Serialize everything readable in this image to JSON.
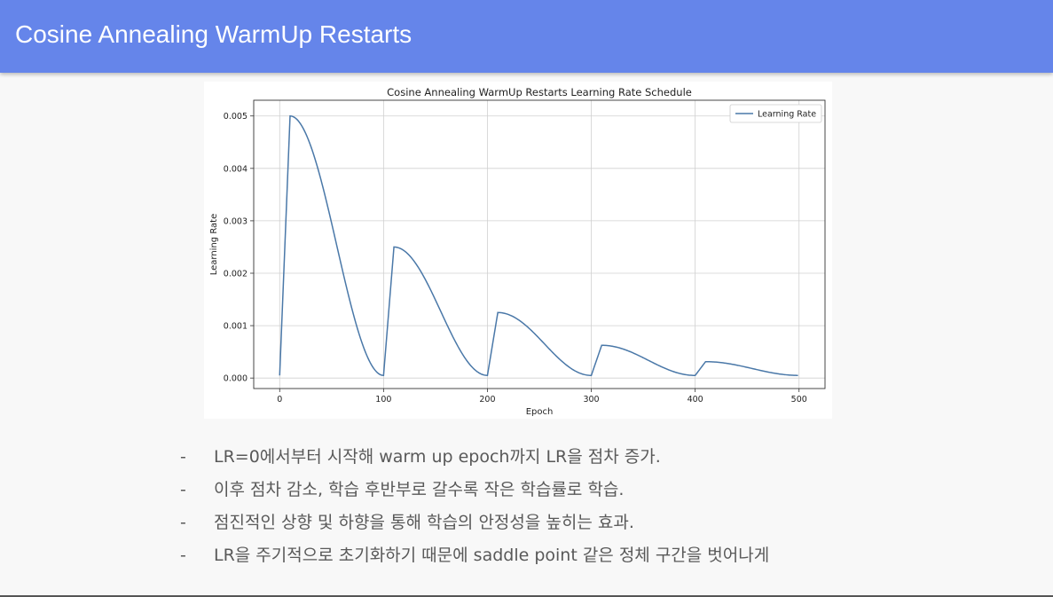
{
  "slide": {
    "title": "Cosine Annealing WarmUp Restarts"
  },
  "bullets": [
    {
      "dash": "-",
      "text": "LR=0에서부터 시작해 warm up epoch까지 LR을 점차 증가."
    },
    {
      "dash": "-",
      "text": "이후 점차 감소, 학습 후반부로 갈수록 작은 학습률로 학습."
    },
    {
      "dash": "-",
      "text": "점진적인 상향 및 하향을 통해 학습의 안정성을 높히는 효과."
    },
    {
      "dash": "-",
      "text": "LR을 주기적으로 초기화하기 때문에 saddle point 같은 정체 구간을 벗어나게"
    }
  ],
  "colors": {
    "header": "#6585ea",
    "line": "#4a78a8",
    "grid": "#d0d0d0"
  },
  "chart_data": {
    "type": "line",
    "title": "Cosine Annealing WarmUp Restarts Learning Rate Schedule",
    "xlabel": "Epoch",
    "ylabel": "Learning Rate",
    "xlim": [
      -25,
      525
    ],
    "ylim": [
      -0.0002,
      0.0053
    ],
    "xticks": [
      0,
      100,
      200,
      300,
      400,
      500
    ],
    "yticks": [
      0.0,
      0.001,
      0.002,
      0.003,
      0.004,
      0.005
    ],
    "ytick_labels": [
      "0.000",
      "0.001",
      "0.002",
      "0.003",
      "0.004",
      "0.005"
    ],
    "grid": true,
    "legend": "top-right",
    "series": [
      {
        "name": "Learning Rate",
        "schedule": {
          "cycle_length": 100,
          "cycles": 5,
          "warmup_epochs": 10,
          "min_lr": 5e-05,
          "max_lr_first": 0.005,
          "gamma": 0.5
        }
      }
    ]
  }
}
